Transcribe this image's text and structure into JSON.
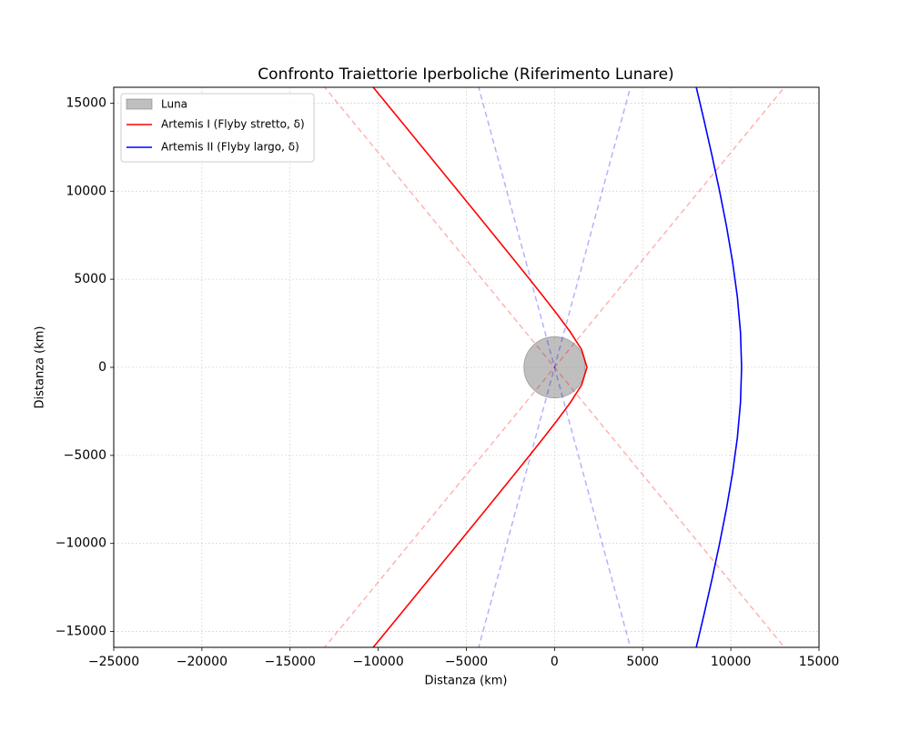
{
  "chart_data": {
    "type": "line",
    "title": "Confronto Traiettorie Iperboliche (Riferimento Lunare)",
    "xlabel": "Distanza (km)",
    "ylabel": "Distanza (km)",
    "xlim": [
      -25000,
      15000
    ],
    "ylim": [
      -15900,
      15900
    ],
    "xticks": [
      {
        "value": -25000,
        "label": "−25000"
      },
      {
        "value": -20000,
        "label": "−20000"
      },
      {
        "value": -15000,
        "label": "−15000"
      },
      {
        "value": -10000,
        "label": "−10000"
      },
      {
        "value": -5000,
        "label": "−5000"
      },
      0,
      5000,
      10000,
      15000
    ],
    "yticks": [
      {
        "value": -15000,
        "label": "−15000"
      },
      {
        "value": -10000,
        "label": "−10000"
      },
      {
        "value": -5000,
        "label": "−5000"
      },
      0,
      5000,
      10000,
      15000
    ],
    "grid": true,
    "legend": "upper-left",
    "moon": {
      "name": "Luna",
      "color": "#808080",
      "center": [
        0,
        0
      ],
      "radius": 1737
    },
    "series": [
      {
        "name": "Artemis I (Flyby stretto, δ)",
        "color": "#ff0000",
        "x": [
          -10364,
          -8728,
          -7095,
          -5461,
          -3834,
          -2216,
          -1413,
          -620,
          158,
          899,
          1537,
          1840,
          1537,
          899,
          158,
          -620,
          -1413,
          -2216,
          -3834,
          -5461,
          -7095,
          -8728,
          -10364
        ],
        "y": [
          -16000,
          -14000,
          -12000,
          -10000,
          -8000,
          -6000,
          -5000,
          -4000,
          -3000,
          -2000,
          -1000,
          0,
          1000,
          2000,
          3000,
          4000,
          5000,
          6000,
          8000,
          10000,
          12000,
          14000,
          16000
        ]
      },
      {
        "name": "Artemis II (Flyby largo, δ)",
        "color": "#0000ff",
        "x": [
          8016,
          8486,
          8937,
          9363,
          9755,
          10097,
          10369,
          10547,
          10610,
          10547,
          10369,
          10097,
          9755,
          9363,
          8937,
          8486,
          8016
        ],
        "y": [
          -16000,
          -14000,
          -12000,
          -10000,
          -8000,
          -6000,
          -4000,
          -2000,
          0,
          2000,
          4000,
          6000,
          8000,
          10000,
          12000,
          14000,
          16000
        ]
      }
    ],
    "asymptotes": [
      {
        "color": "#ff0000",
        "x": [
          -13120,
          13120
        ],
        "y": [
          16000,
          -16000
        ]
      },
      {
        "color": "#ff0000",
        "x": [
          -13120,
          13120
        ],
        "y": [
          -16000,
          16000
        ]
      },
      {
        "color": "#0000ff",
        "x": [
          -4330,
          4330
        ],
        "y": [
          16000,
          -16000
        ]
      },
      {
        "color": "#0000ff",
        "x": [
          -4330,
          4330
        ],
        "y": [
          -16000,
          16000
        ]
      }
    ]
  }
}
